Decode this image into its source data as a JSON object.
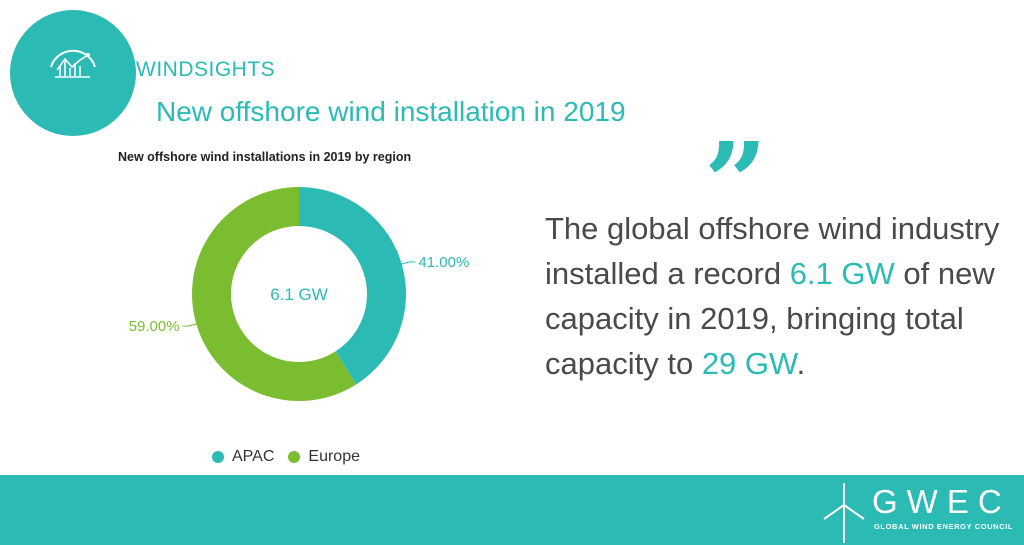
{
  "brand": {
    "name": "WINDSIGHTS",
    "headline": "New offshore wind installation in 2019"
  },
  "chart_data": {
    "type": "pie",
    "style": "donut",
    "title": "New offshore wind installations in 2019  by region",
    "center_label": "6.1 GW",
    "categories": [
      "APAC",
      "Europe"
    ],
    "values": [
      41.0,
      59.0
    ],
    "labels": [
      "41.00%",
      "59.00%"
    ],
    "colors": [
      "#2bbab4",
      "#7bbd31"
    ],
    "legend_position": "bottom"
  },
  "quote": {
    "before_1": "The global offshore wind industry installed a record ",
    "highlight_1": "6.1 GW",
    "before_2": " of new capacity in 2019, bringing total capacity to ",
    "highlight_2": "29 GW",
    "after": "."
  },
  "footer": {
    "logo_name": "GWEC",
    "logo_subtitle": "GLOBAL WIND ENERGY COUNCIL"
  },
  "colors": {
    "accent": "#2bbab4",
    "green": "#7bbd31",
    "text": "#4a4a4a"
  },
  "icons": {
    "badge_icon": "analytics-chart-icon",
    "quote_icon": "quote-mark-icon",
    "logo_icon": "wind-turbine-icon"
  }
}
